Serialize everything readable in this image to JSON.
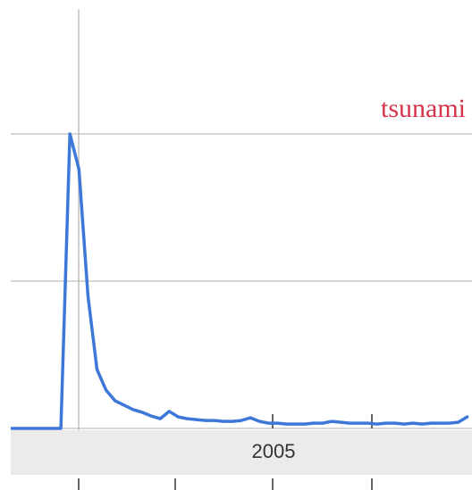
{
  "chart_data": {
    "type": "line",
    "title": "tsunami",
    "x_band_label": "2005",
    "categories": [
      null,
      null,
      null,
      null,
      null,
      null,
      null,
      null,
      null,
      null,
      null,
      null,
      null,
      null,
      null,
      null,
      null,
      null,
      null,
      null,
      null,
      null,
      null,
      null,
      null,
      null,
      null,
      null,
      null,
      null,
      null,
      null,
      null,
      null,
      null,
      null,
      null,
      null,
      null,
      null,
      null,
      null,
      null,
      null,
      null,
      null,
      null,
      null,
      null,
      null,
      null,
      null
    ],
    "series": [
      {
        "name": "tsunami",
        "color": "#3d78d8",
        "values": [
          0,
          0,
          0,
          0,
          0,
          0,
          0,
          100,
          88,
          45,
          20,
          13,
          9.4,
          7.9,
          6.4,
          5.5,
          4.2,
          3.3,
          5.8,
          3.9,
          3.3,
          3,
          2.7,
          2.7,
          2.4,
          2.4,
          2.7,
          3.6,
          2.4,
          1.8,
          1.8,
          1.5,
          1.5,
          1.5,
          1.8,
          1.8,
          2.4,
          2.1,
          1.8,
          1.8,
          1.8,
          1.5,
          1.8,
          1.8,
          1.5,
          1.8,
          1.5,
          1.8,
          1.8,
          1.8,
          2.1,
          3.9
        ]
      }
    ],
    "ylim": [
      0,
      100
    ],
    "yticks": [
      0,
      50,
      100
    ],
    "grid": true,
    "title_color": "#d6334a"
  }
}
